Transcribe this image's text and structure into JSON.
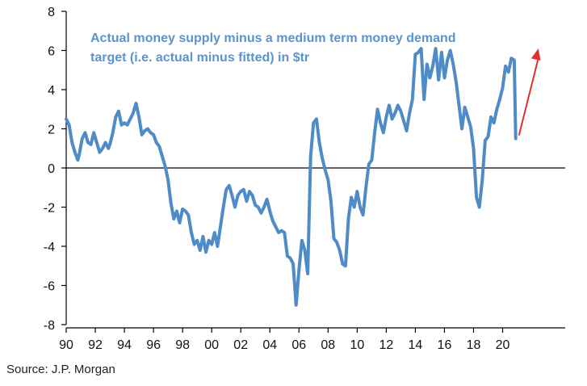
{
  "chart_data": {
    "type": "line",
    "title": [
      "Actual money supply minus a medium term money demand",
      "target (i.e. actual minus fitted)  in $tr"
    ],
    "xlabel": "",
    "ylabel": "",
    "source": "Source: J.P. Morgan",
    "xlim": [
      1990,
      2024.3
    ],
    "ylim": [
      -8,
      8
    ],
    "x_ticks": [
      1990,
      1992,
      1994,
      1996,
      1998,
      2000,
      2002,
      2004,
      2006,
      2008,
      2010,
      2012,
      2014,
      2016,
      2018,
      2020
    ],
    "x_tick_labels": [
      "90",
      "92",
      "94",
      "96",
      "98",
      "00",
      "02",
      "04",
      "06",
      "08",
      "10",
      "12",
      "14",
      "16",
      "18",
      "20"
    ],
    "y_ticks": [
      8,
      6,
      4,
      2,
      0,
      -2,
      -4,
      -6,
      -8
    ],
    "y_tick_labels": [
      "8",
      "6",
      "4",
      "2",
      "0",
      "-2",
      "-4",
      "-6",
      "-8"
    ],
    "grid": false,
    "series_color": "#4f8cc7",
    "arrow_color": "#e32f2b",
    "series": [
      {
        "x": [
          1990.0,
          1990.2,
          1990.4,
          1990.6,
          1990.8,
          1990.9,
          1991.1,
          1991.3,
          1991.5,
          1991.7,
          1991.9,
          1992.1,
          1992.3,
          1992.5,
          1992.7,
          1992.9,
          1993.0,
          1993.2,
          1993.4,
          1993.6,
          1993.8,
          1994.0,
          1994.2,
          1994.4,
          1994.6,
          1994.8,
          1995.0,
          1995.2,
          1995.4,
          1995.6,
          1995.8,
          1996.0,
          1996.2,
          1996.4,
          1996.6,
          1996.8,
          1997.0,
          1997.2,
          1997.4,
          1997.6,
          1997.8,
          1998.0,
          1998.2,
          1998.4,
          1998.6,
          1998.8,
          1999.0,
          1999.2,
          1999.4,
          1999.6,
          1999.8,
          2000.0,
          2000.2,
          2000.4,
          2000.6,
          2000.8,
          2001.0,
          2001.2,
          2001.4,
          2001.6,
          2001.8,
          2002.0,
          2002.2,
          2002.4,
          2002.6,
          2002.8,
          2003.0,
          2003.2,
          2003.4,
          2003.6,
          2003.8,
          2004.0,
          2004.2,
          2004.4,
          2004.6,
          2004.8,
          2005.0,
          2005.2,
          2005.4,
          2005.6,
          2005.8,
          2006.0,
          2006.2,
          2006.4,
          2006.6,
          2006.8,
          2007.0,
          2007.2,
          2007.4,
          2007.6,
          2007.8,
          2008.0,
          2008.2,
          2008.4,
          2008.6,
          2008.8,
          2009.0,
          2009.2,
          2009.4,
          2009.6,
          2009.8,
          2010.0,
          2010.2,
          2010.4,
          2010.6,
          2010.8,
          2011.0,
          2011.2,
          2011.4,
          2011.6,
          2011.8,
          2012.0,
          2012.2,
          2012.4,
          2012.6,
          2012.8,
          2013.0,
          2013.2,
          2013.4,
          2013.6,
          2013.8,
          2014.0,
          2014.2,
          2014.4,
          2014.6,
          2014.8,
          2015.0,
          2015.2,
          2015.4,
          2015.6,
          2015.8,
          2016.0,
          2016.2,
          2016.4,
          2016.6,
          2016.8,
          2017.0,
          2017.2,
          2017.4,
          2017.6,
          2017.8,
          2018.0,
          2018.2,
          2018.4,
          2018.6,
          2018.8,
          2019.0,
          2019.2,
          2019.4,
          2019.6,
          2019.8,
          2020.0,
          2020.2,
          2020.4,
          2020.6,
          2020.8,
          2020.9
        ],
        "values": [
          2.5,
          2.2,
          1.3,
          0.8,
          0.4,
          0.7,
          1.5,
          1.8,
          1.3,
          1.2,
          1.8,
          1.3,
          0.8,
          1.0,
          1.3,
          1.0,
          1.2,
          1.8,
          2.6,
          2.9,
          2.2,
          2.3,
          2.2,
          2.5,
          2.8,
          3.3,
          2.6,
          1.7,
          1.9,
          2.0,
          1.8,
          1.7,
          1.3,
          1.1,
          0.6,
          0.1,
          -0.6,
          -1.8,
          -2.6,
          -2.2,
          -2.8,
          -2.1,
          -2.2,
          -2.4,
          -3.3,
          -3.9,
          -3.7,
          -4.2,
          -3.5,
          -4.3,
          -3.7,
          -3.9,
          -3.3,
          -4.0,
          -3.0,
          -2.0,
          -1.1,
          -0.9,
          -1.4,
          -2.0,
          -1.4,
          -1.2,
          -1.1,
          -1.7,
          -1.2,
          -1.4,
          -1.9,
          -2.0,
          -2.3,
          -2.0,
          -1.6,
          -2.2,
          -2.7,
          -3.0,
          -3.3,
          -3.2,
          -3.3,
          -4.5,
          -4.6,
          -4.9,
          -7.0,
          -5.2,
          -3.7,
          -4.2,
          -5.4,
          0.6,
          2.3,
          2.5,
          1.3,
          0.5,
          -0.1,
          -0.6,
          -1.7,
          -3.6,
          -3.8,
          -4.2,
          -4.9,
          -5.0,
          -2.6,
          -1.5,
          -2.0,
          -1.2,
          -2.0,
          -2.4,
          -1.0,
          0.2,
          0.4,
          1.8,
          3.0,
          2.3,
          1.8,
          2.6,
          3.2,
          2.5,
          2.8,
          3.2,
          2.9,
          2.4,
          1.9,
          2.8,
          3.5,
          5.8,
          5.9,
          6.1,
          3.5,
          5.3,
          4.6,
          5.2,
          6.1,
          4.5,
          5.9,
          4.6,
          5.5,
          6.0,
          5.3,
          4.4,
          3.2,
          2.0,
          3.1,
          2.6,
          2.1,
          1.0,
          -1.5,
          -2.0,
          -0.6,
          1.4,
          1.6,
          2.6,
          2.3,
          3.0,
          3.5,
          4.1,
          5.2,
          4.9,
          5.6,
          5.5,
          1.5
        ],
        "name": ""
      }
    ]
  }
}
